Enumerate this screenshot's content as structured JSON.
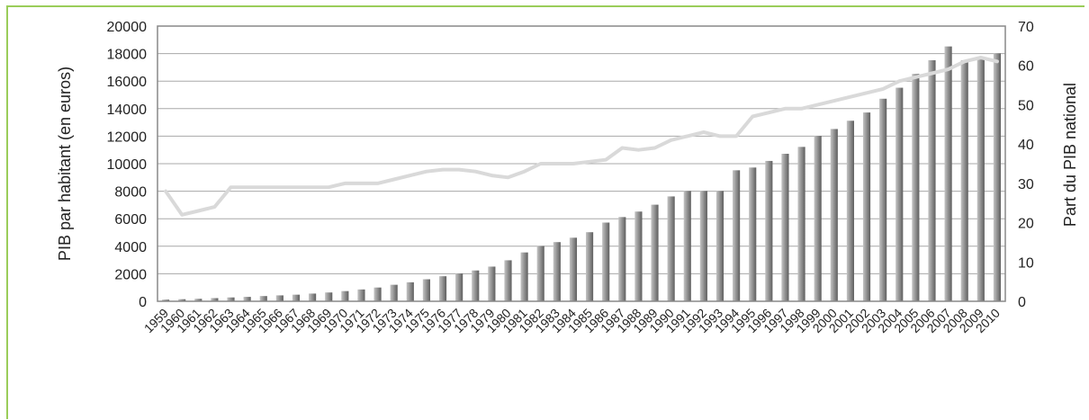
{
  "chart_data": {
    "type": "bar",
    "left_axis_label": "PIB par habitant (en euros)",
    "right_axis_label": "Part du PIB national",
    "y_left_lim": [
      0,
      20000
    ],
    "y_left_ticks": [
      0,
      2000,
      4000,
      6000,
      8000,
      10000,
      12000,
      14000,
      16000,
      18000,
      20000
    ],
    "y_right_lim": [
      0,
      70
    ],
    "y_right_ticks": [
      0,
      10,
      20,
      30,
      40,
      50,
      60,
      70
    ],
    "grid": true,
    "categories": [
      "1959",
      "1960",
      "1961",
      "1962",
      "1963",
      "1964",
      "1965",
      "1966",
      "1967",
      "1968",
      "1969",
      "1970",
      "1971",
      "1972",
      "1973",
      "1974",
      "1975",
      "1976",
      "1977",
      "1978",
      "1979",
      "1980",
      "1981",
      "1982",
      "1983",
      "1984",
      "1985",
      "1986",
      "1987",
      "1988",
      "1989",
      "1990",
      "1991",
      "1992",
      "1993",
      "1994",
      "1995",
      "1996",
      "1997",
      "1998",
      "1999",
      "2000",
      "2001",
      "2002",
      "2003",
      "2004",
      "2005",
      "2006",
      "2007",
      "2008",
      "2009",
      "2010"
    ],
    "series": [
      {
        "axis": "left",
        "kind": "bar",
        "color": "#8c8c8c",
        "values": [
          120,
          150,
          180,
          230,
          280,
          320,
          380,
          430,
          480,
          560,
          640,
          740,
          860,
          1000,
          1200,
          1380,
          1600,
          1820,
          2020,
          2240,
          2520,
          2980,
          3550,
          4020,
          4300,
          4620,
          5020,
          5720,
          6120,
          6520,
          7020,
          7620,
          8020,
          8020,
          8020,
          9520,
          9720,
          10200,
          10720,
          11220,
          12020,
          12520,
          13120,
          13720,
          14720,
          15520,
          16520,
          17520,
          18520,
          17520,
          17720,
          18020
        ]
      },
      {
        "axis": "right",
        "kind": "line",
        "color": "#d9d9d9",
        "values": [
          28,
          22,
          23,
          24,
          29,
          29,
          29,
          29,
          29,
          29,
          29,
          30,
          30,
          30,
          31,
          32,
          33,
          33.5,
          33.5,
          33,
          32,
          31.5,
          33,
          35,
          35,
          35,
          35.5,
          36,
          39,
          38.5,
          39,
          41,
          42,
          43,
          42,
          42,
          47,
          48,
          49,
          49,
          50,
          51,
          52,
          53,
          54,
          56,
          57,
          58,
          59,
          61,
          62,
          61
        ]
      }
    ]
  }
}
